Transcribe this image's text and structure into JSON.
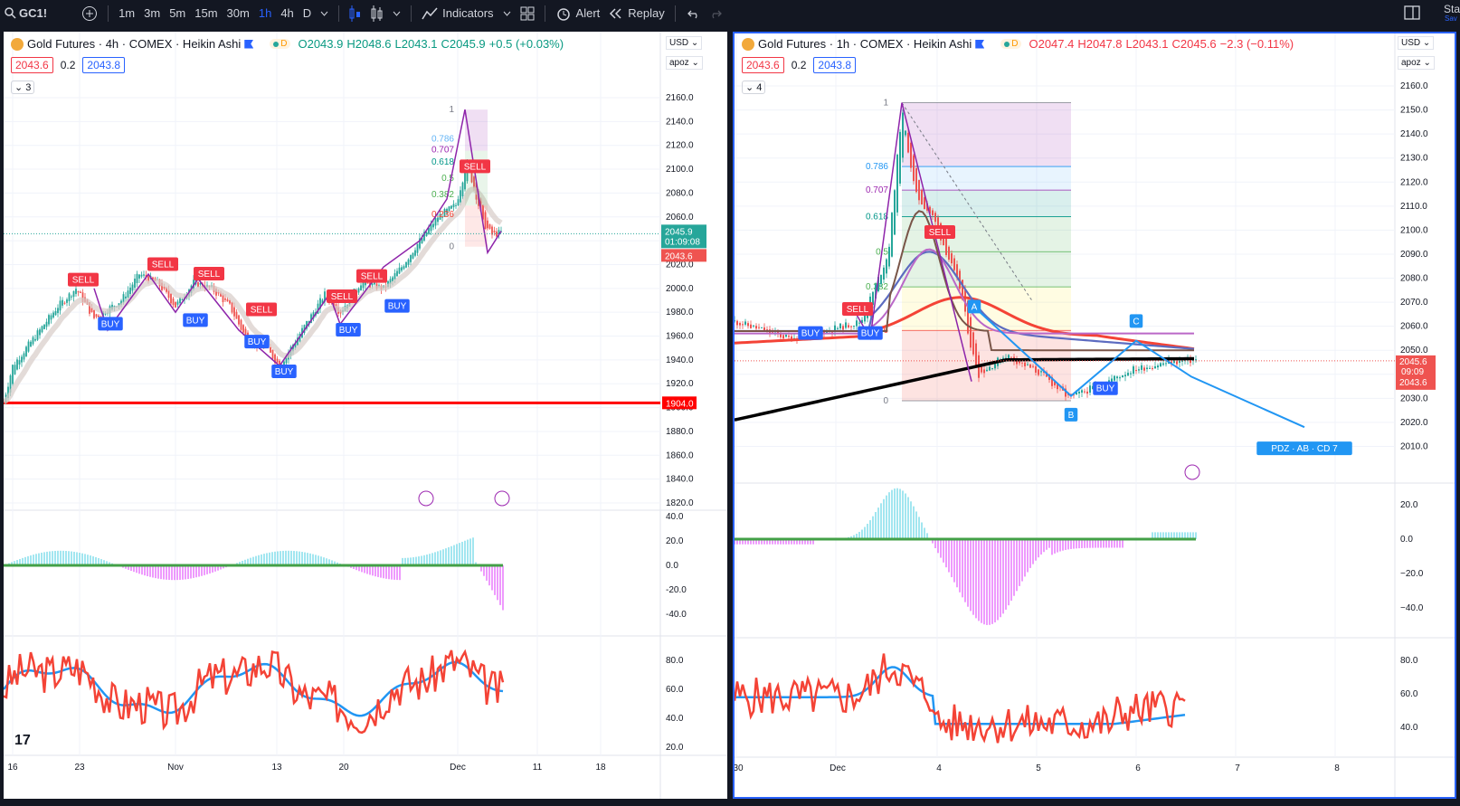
{
  "topbar": {
    "symbol": "GC1!",
    "intervals": [
      "1m",
      "3m",
      "5m",
      "15m",
      "30m",
      "1h",
      "4h",
      "D"
    ],
    "active_interval": "1h",
    "indicators_label": "Indicators",
    "alert_label": "Alert",
    "replay_label": "Replay",
    "right_label_1": "Sta",
    "right_label_2": "Sav"
  },
  "left": {
    "title": "Gold Futures · 4h · COMEX · Heikin Ashi",
    "live": "D",
    "ohlc": {
      "o": "O2043.9",
      "h": "H2048.6",
      "l": "L2043.1",
      "c": "C2045.9",
      "chg": "+0.5 (+0.03%)"
    },
    "bid": "2043.6",
    "spread": "0.2",
    "ask": "2043.8",
    "collapse": "3",
    "currency": "USD",
    "scale_mode": "apoz",
    "price_ticks": [
      "2160.0",
      "2140.0",
      "2120.0",
      "2100.0",
      "2080.0",
      "2060.0",
      "2040.0",
      "2020.0",
      "2000.0",
      "1980.0",
      "1960.0",
      "1940.0",
      "1920.0",
      "1900.0",
      "1880.0",
      "1860.0",
      "1840.0",
      "1820.0"
    ],
    "last_price": "2045.9",
    "countdown": "01:09:08",
    "bid_tag": "2043.6",
    "hline_tag": "1904.0",
    "fib_levels": [
      "1",
      "0.786",
      "0.707",
      "0.618",
      "0.5",
      "0.382",
      "0.236",
      "0"
    ],
    "signals": [
      "SELL",
      "BUY",
      "SELL",
      "BUY",
      "SELL",
      "BUY",
      "SELL",
      "BUY",
      "SELL",
      "BUY",
      "SELL",
      "BUY",
      "SELL",
      "SELL"
    ],
    "osc_ticks": [
      "40.0",
      "20.0",
      "0.0",
      "-20.0",
      "-40.0"
    ],
    "rsi_ticks": [
      "80.0",
      "60.0",
      "40.0",
      "20.0"
    ],
    "time_ticks": [
      "16",
      "23",
      "Nov",
      "13",
      "20",
      "Dec",
      "11",
      "18"
    ],
    "brand": "17"
  },
  "right": {
    "title": "Gold Futures · 1h · COMEX · Heikin Ashi",
    "live": "D",
    "ohlc": {
      "o": "O2047.4",
      "h": "H2047.8",
      "l": "L2043.1",
      "c": "C2045.6",
      "chg": "−2.3 (−0.11%)"
    },
    "bid": "2043.6",
    "spread": "0.2",
    "ask": "2043.8",
    "collapse": "4",
    "currency": "USD",
    "scale_mode": "apoz",
    "price_ticks": [
      "2160.0",
      "2150.0",
      "2140.0",
      "2130.0",
      "2120.0",
      "2110.0",
      "2100.0",
      "2090.0",
      "2080.0",
      "2070.0",
      "2060.0",
      "2050.0",
      "2040.0",
      "2030.0",
      "2020.0",
      "2010.0"
    ],
    "last_price": "2045.6",
    "countdown": "09:09",
    "bid_tag": "2043.6",
    "fib_levels": [
      "1",
      "0.786",
      "0.707",
      "0.618",
      "0.5",
      "0.382",
      "0.236",
      "0"
    ],
    "abc": [
      "A",
      "B",
      "C"
    ],
    "signals": [
      "SELL",
      "BUY",
      "BUY",
      "SELL",
      "BUY"
    ],
    "osc_ticks": [
      "20.0",
      "0.0",
      "−20.0",
      "−40.0"
    ],
    "rsi_ticks": [
      "80.0",
      "60.0",
      "40.0"
    ],
    "time_ticks": [
      "30",
      "Dec",
      "4",
      "5",
      "6",
      "7",
      "8"
    ],
    "tag": "PDZ · AB · CD 7"
  },
  "colors": {
    "bull": "#26a69a",
    "bear": "#ef5350",
    "fib_line": "#8e24aa",
    "blue": "#2196f3",
    "sell": "#f23645",
    "buy": "#2962ff"
  }
}
